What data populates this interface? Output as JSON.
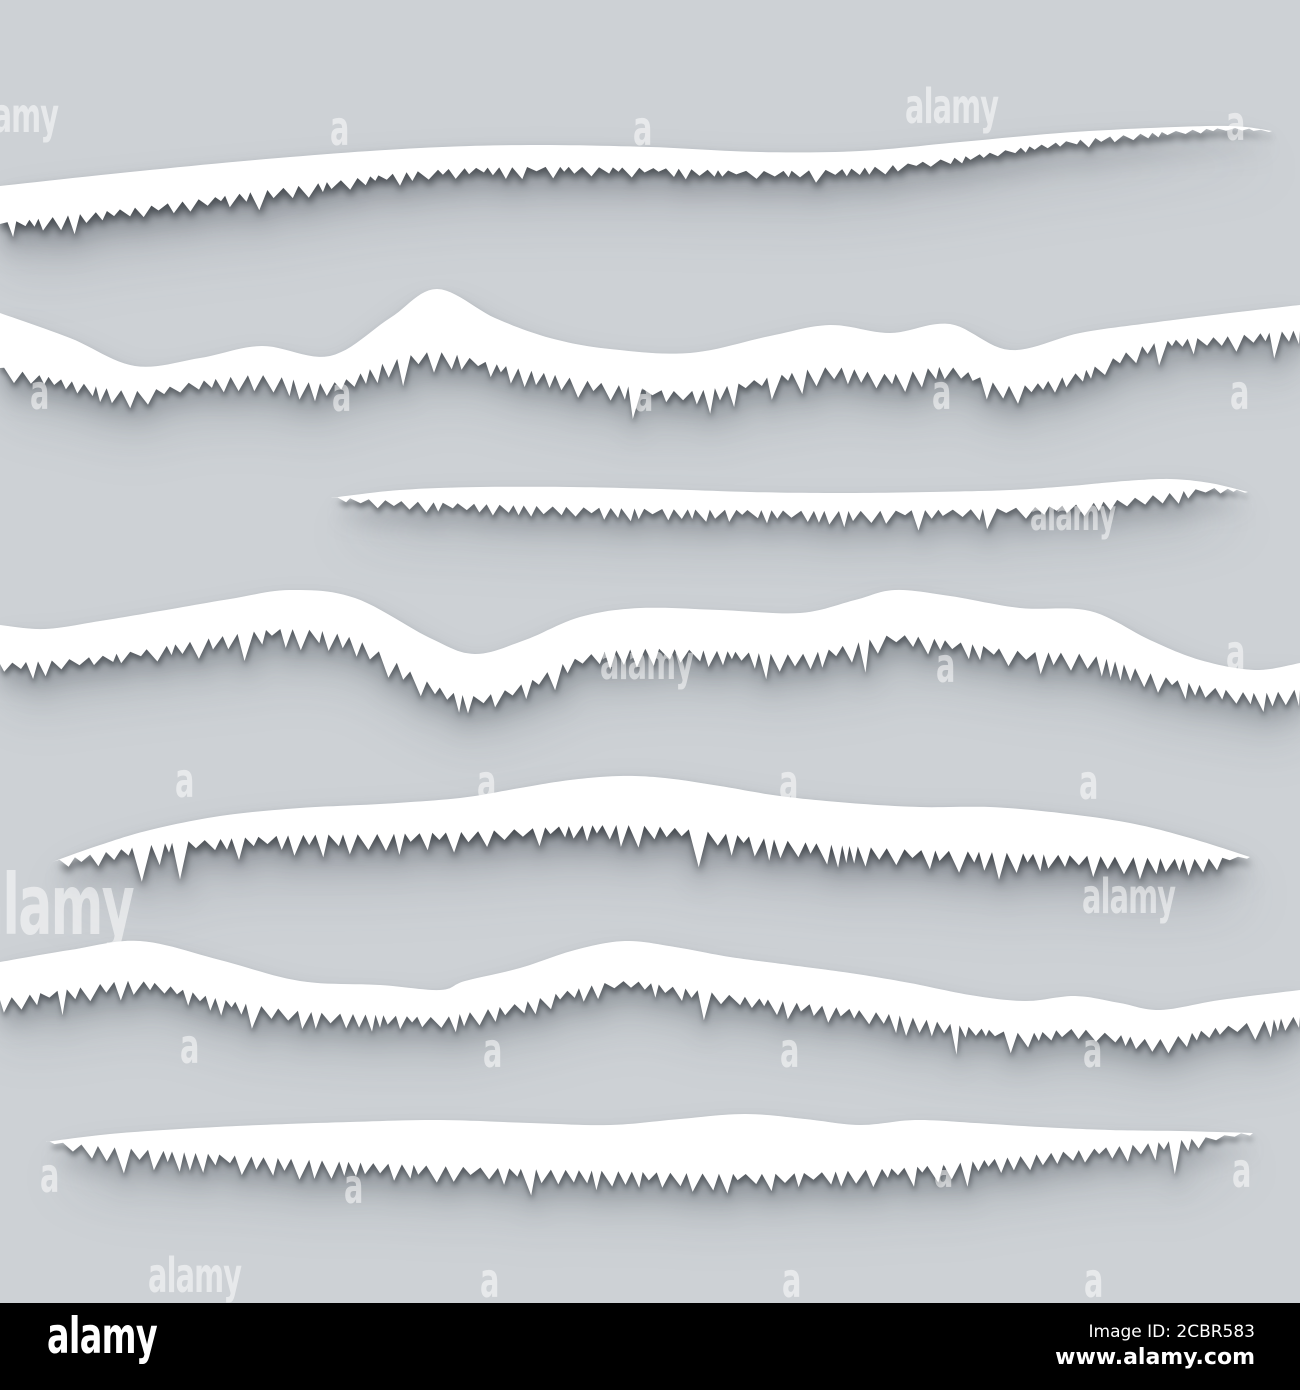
{
  "image": {
    "description": "Set of seven torn paper edge strips on gray background",
    "background_color": "#cdd1d5",
    "paper_color": "#ffffff",
    "strip_count": 7
  },
  "watermark": {
    "word": "alamy",
    "letter": "a",
    "color": "#ffffff"
  },
  "footer": {
    "bar_color": "#000000",
    "logo": "alamy",
    "image_id": "Image ID: 2CBR583",
    "url": "www.alamy.com"
  }
}
